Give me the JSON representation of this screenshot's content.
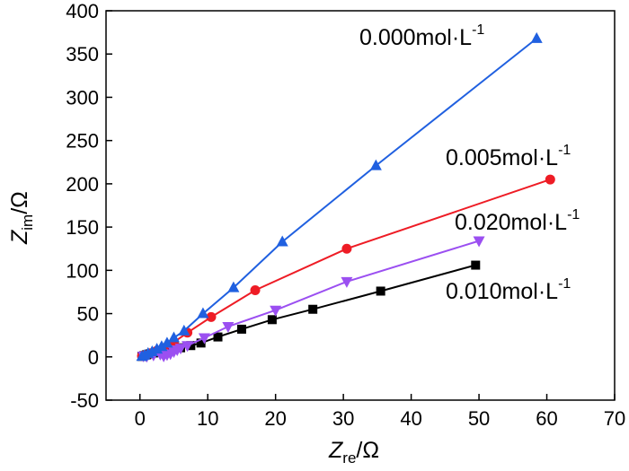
{
  "chart_data": {
    "type": "line",
    "xlabel": {
      "main": "Z",
      "sub": "re",
      "unit": "/Ω"
    },
    "ylabel": {
      "main": "Z",
      "sub": "im",
      "unit": "/Ω"
    },
    "xlim": [
      -5,
      70
    ],
    "ylim": [
      -50,
      400
    ],
    "xticks": [
      "0",
      "10",
      "20",
      "30",
      "40",
      "50",
      "60",
      "70"
    ],
    "yticks": [
      "-50",
      "0",
      "50",
      "100",
      "150",
      "200",
      "250",
      "300",
      "350",
      "400"
    ],
    "series": [
      {
        "name": "0.010mol·L-1",
        "label_main": "0.010mol·L",
        "label_sup": "-1",
        "color": "#000000",
        "marker": "square",
        "x": [
          0.3,
          0.6,
          1.0,
          1.5,
          2.0,
          3.0,
          4.0,
          5.0,
          6.0,
          7.5,
          9.0,
          11.5,
          15.0,
          19.5,
          25.5,
          35.5,
          49.5
        ],
        "y": [
          0.5,
          1.5,
          2.5,
          3.5,
          4.5,
          6.0,
          7.5,
          9.0,
          10.5,
          13.0,
          16.0,
          23.0,
          32.0,
          43.0,
          55.0,
          76.0,
          106.0
        ]
      },
      {
        "name": "0.005mol·L-1",
        "label_main": "0.005mol·L",
        "label_sup": "-1",
        "color": "#ee1c25",
        "marker": "circle",
        "x": [
          0.3,
          0.8,
          1.5,
          2.5,
          3.5,
          5.0,
          7.0,
          10.5,
          17.0,
          30.5,
          60.5
        ],
        "y": [
          1.0,
          2.0,
          4.0,
          7.0,
          10.0,
          17.0,
          28.0,
          46.0,
          77.0,
          125.0,
          205.0
        ]
      },
      {
        "name": "0.020mol·L-1",
        "label_main": "0.020mol·L",
        "label_sup": "-1",
        "color": "#9b4ff1",
        "marker": "triangle-down",
        "x": [
          0.5,
          1.0,
          2.0,
          3.0,
          3.5,
          4.0,
          4.5,
          5.0,
          5.5,
          6.0,
          7.0,
          9.5,
          13.0,
          20.0,
          30.5,
          50.0
        ],
        "y": [
          1.0,
          0.5,
          2.0,
          3.0,
          1.0,
          2.5,
          3.5,
          6.0,
          8.0,
          10.0,
          13.0,
          22.0,
          35.0,
          54.0,
          87.0,
          134.0
        ]
      },
      {
        "name": "0.000mol·L-1",
        "label_main": "0.000mol·L",
        "label_sup": "-1",
        "color": "#2060e0",
        "marker": "triangle-up",
        "x": [
          0.3,
          0.7,
          1.2,
          1.8,
          2.5,
          3.2,
          4.0,
          5.0,
          6.5,
          9.3,
          13.8,
          21.0,
          34.8,
          58.5
        ],
        "y": [
          0.5,
          2.0,
          4.0,
          6.0,
          9.0,
          12.0,
          16.0,
          22.0,
          30.0,
          50.0,
          80.0,
          133.0,
          221.0,
          368.0
        ]
      }
    ]
  }
}
